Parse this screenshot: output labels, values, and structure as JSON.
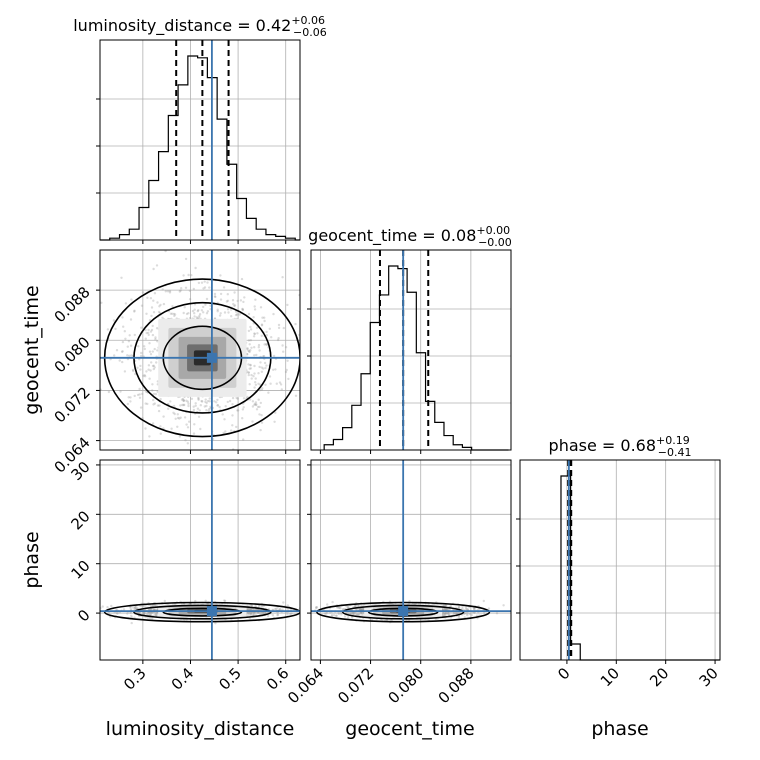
{
  "chart_data": {
    "type": "corner",
    "parameters": [
      "luminosity_distance",
      "geocent_time",
      "phase"
    ],
    "truth": {
      "luminosity_distance": 0.445,
      "geocent_time": 0.0772,
      "phase": 0.4
    },
    "truth_color": "#3b75af",
    "titles": [
      {
        "param": "luminosity_distance",
        "prefix": "luminosity_distance = ",
        "value": "0.42",
        "plus": "+0.06",
        "minus": "−0.06"
      },
      {
        "param": "geocent_time",
        "prefix": "geocent_time = ",
        "value": "0.08",
        "plus": "+0.00",
        "minus": "−0.00"
      },
      {
        "param": "phase",
        "prefix": "phase = ",
        "value": "0.68",
        "plus": "+0.19",
        "minus": "−0.41"
      }
    ],
    "axis_labels": {
      "x": [
        "luminosity_distance",
        "geocent_time",
        "phase"
      ],
      "y": [
        "geocent_time",
        "phase"
      ]
    },
    "ranges": {
      "luminosity_distance": [
        0.21,
        0.63
      ],
      "geocent_time": [
        0.0625,
        0.0944
      ],
      "phase": [
        -9.5,
        31
      ]
    },
    "ticks": {
      "luminosity_distance": [
        0.3,
        0.4,
        0.5,
        0.6
      ],
      "geocent_time": [
        0.064,
        0.072,
        0.08,
        0.088
      ],
      "phase": [
        0,
        10,
        20,
        30
      ]
    },
    "tick_labels": {
      "luminosity_distance": [
        "0.3",
        "0.4",
        "0.5",
        "0.6"
      ],
      "geocent_time": [
        "0.064",
        "0.072",
        "0.080",
        "0.088"
      ],
      "phase": [
        "0",
        "10",
        "20",
        "30"
      ]
    },
    "quantiles": {
      "luminosity_distance": [
        0.37,
        0.425,
        0.48
      ],
      "geocent_time": [
        0.0735,
        0.0772,
        0.0812
      ],
      "phase": [
        0.27,
        0.68,
        0.87
      ]
    },
    "hist_luminosity_distance": {
      "bin_start": 0.21,
      "bin_width": 0.0205,
      "counts": [
        0,
        1,
        3,
        6,
        18,
        33,
        49,
        69,
        86,
        102,
        101,
        90,
        67,
        42,
        23,
        12,
        6,
        3,
        2,
        1,
        0
      ]
    },
    "hist_geocent_time": {
      "bin_start": 0.0646,
      "bin_width": 0.00147,
      "counts": [
        4,
        8,
        17,
        34,
        58,
        97,
        118,
        140,
        138,
        120,
        74,
        37,
        21,
        11,
        4,
        2,
        0,
        0,
        0,
        0
      ]
    },
    "hist_phase": {
      "bin_start": -1.2,
      "bin_width": 1.95,
      "counts": [
        230,
        20,
        0,
        0,
        0,
        0,
        0,
        0,
        0,
        0,
        0,
        0,
        0,
        0,
        0,
        0,
        0,
        0,
        0,
        0
      ]
    },
    "grid": true,
    "grid_color": "#b0b0b0"
  }
}
